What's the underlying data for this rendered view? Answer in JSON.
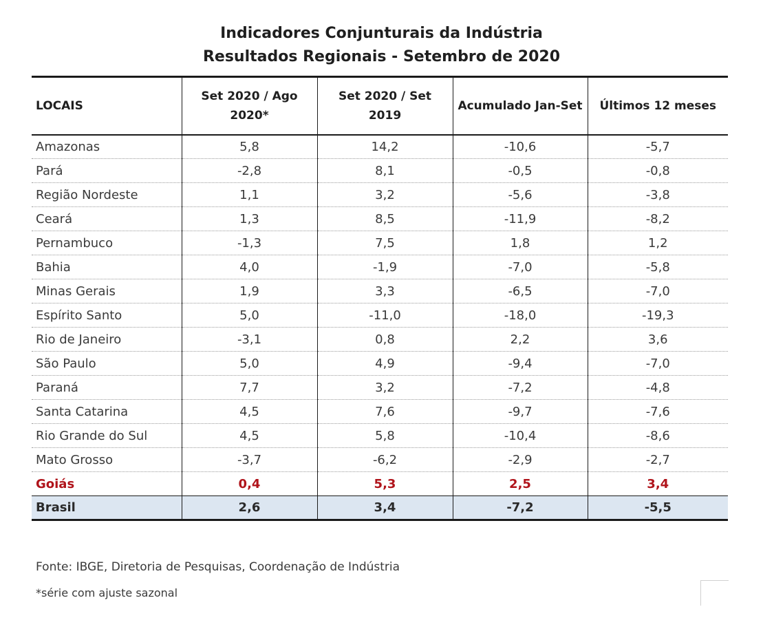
{
  "title": {
    "line1": "Indicadores Conjunturais da Indústria",
    "line2": "Resultados Regionais - Setembro de 2020"
  },
  "table": {
    "headers": [
      "LOCAIS",
      "Set 2020 / Ago 2020*",
      "Set 2020 / Set 2019",
      "Acumulado Jan-Set",
      "Últimos 12 meses"
    ],
    "rows": [
      [
        "Amazonas",
        "5,8",
        "14,2",
        "-10,6",
        "-5,7"
      ],
      [
        "Pará",
        "-2,8",
        "8,1",
        "-0,5",
        "-0,8"
      ],
      [
        "Região Nordeste",
        "1,1",
        "3,2",
        "-5,6",
        "-3,8"
      ],
      [
        "Ceará",
        "1,3",
        "8,5",
        "-11,9",
        "-8,2"
      ],
      [
        "Pernambuco",
        "-1,3",
        "7,5",
        "1,8",
        "1,2"
      ],
      [
        "Bahia",
        "4,0",
        "-1,9",
        "-7,0",
        "-5,8"
      ],
      [
        "Minas Gerais",
        "1,9",
        "3,3",
        "-6,5",
        "-7,0"
      ],
      [
        "Espírito Santo",
        "5,0",
        "-11,0",
        "-18,0",
        "-19,3"
      ],
      [
        "Rio de Janeiro",
        "-3,1",
        "0,8",
        "2,2",
        "3,6"
      ],
      [
        "São Paulo",
        "5,0",
        "4,9",
        "-9,4",
        "-7,0"
      ],
      [
        "Paraná",
        "7,7",
        "3,2",
        "-7,2",
        "-4,8"
      ],
      [
        "Santa Catarina",
        "4,5",
        "7,6",
        "-9,7",
        "-7,6"
      ],
      [
        "Rio Grande do Sul",
        "4,5",
        "5,8",
        "-10,4",
        "-8,6"
      ],
      [
        "Mato Grosso",
        "-3,7",
        "-6,2",
        "-2,9",
        "-2,7"
      ],
      [
        "Goiás",
        "0,4",
        "5,3",
        "2,5",
        "3,4"
      ],
      [
        "Brasil",
        "2,6",
        "3,4",
        "-7,2",
        "-5,5"
      ]
    ],
    "highlight_color": "#b0141b",
    "total_row_bg": "#dce6f1"
  },
  "footnotes": {
    "source": "Fonte: IBGE, Diretoria de Pesquisas, Coordenação de Indústria",
    "note": "*série com ajuste sazonal"
  }
}
